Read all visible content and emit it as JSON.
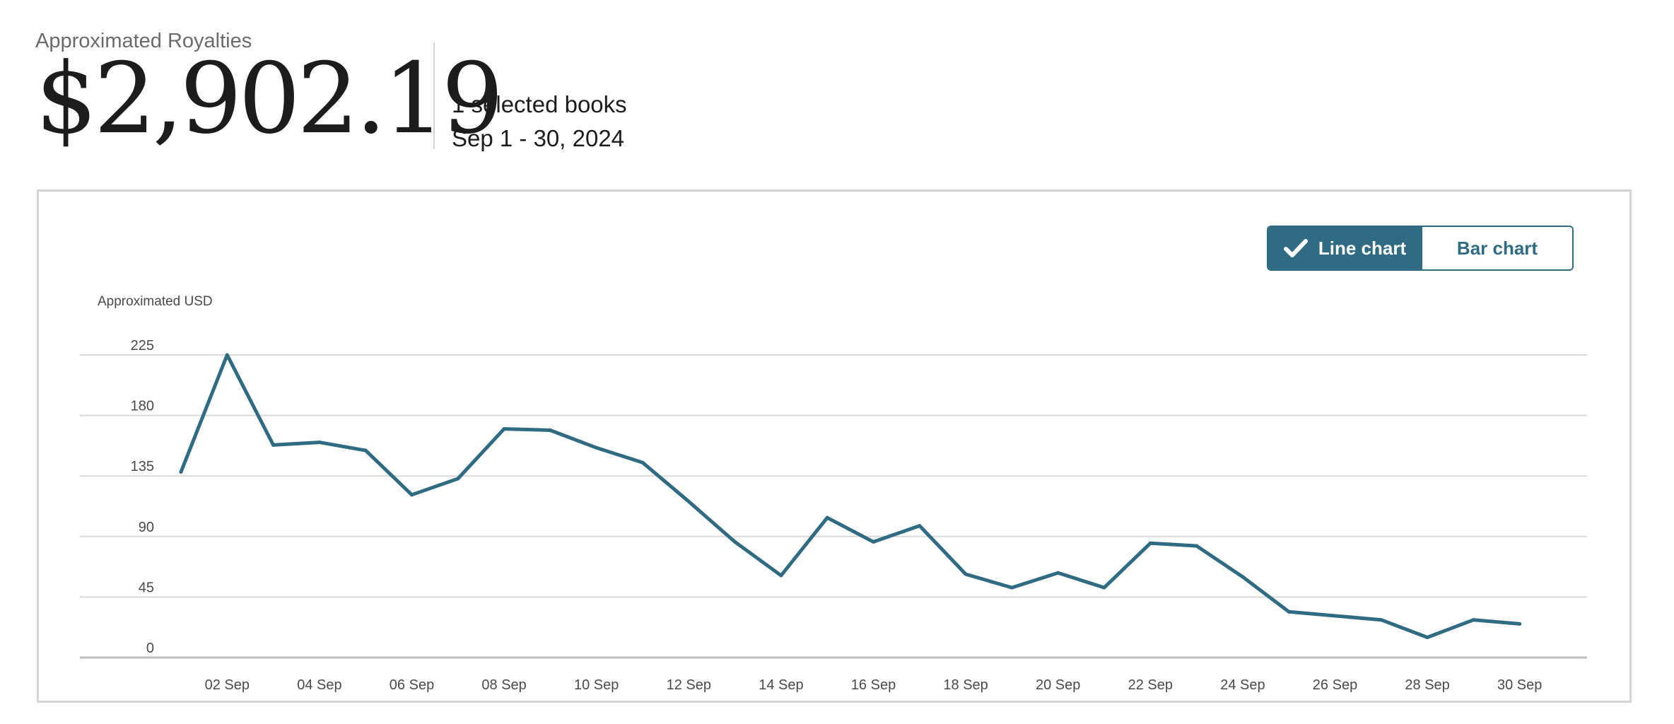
{
  "header": {
    "label": "Approximated Royalties",
    "amount": "$2,902.19",
    "books": "1 selected books",
    "date_range": "Sep 1 - 30, 2024"
  },
  "toggle": {
    "line_label": "Line chart",
    "bar_label": "Bar chart",
    "selected": "line",
    "check_icon": "checkmark-icon"
  },
  "colors": {
    "accent": "#2f6b82",
    "grid": "#d9d9d9"
  },
  "chart_data": {
    "type": "line",
    "ylabel": "Approximated USD",
    "ylim": [
      0,
      225
    ],
    "yticks": [
      0,
      45,
      90,
      135,
      180,
      225
    ],
    "grid": true,
    "x": [
      "01 Sep",
      "02 Sep",
      "03 Sep",
      "04 Sep",
      "05 Sep",
      "06 Sep",
      "07 Sep",
      "08 Sep",
      "09 Sep",
      "10 Sep",
      "11 Sep",
      "12 Sep",
      "13 Sep",
      "14 Sep",
      "15 Sep",
      "16 Sep",
      "17 Sep",
      "18 Sep",
      "19 Sep",
      "20 Sep",
      "21 Sep",
      "22 Sep",
      "23 Sep",
      "24 Sep",
      "25 Sep",
      "26 Sep",
      "27 Sep",
      "28 Sep",
      "29 Sep",
      "30 Sep"
    ],
    "xticklabels": [
      "02 Sep",
      "04 Sep",
      "06 Sep",
      "08 Sep",
      "10 Sep",
      "12 Sep",
      "14 Sep",
      "16 Sep",
      "18 Sep",
      "20 Sep",
      "22 Sep",
      "24 Sep",
      "26 Sep",
      "28 Sep",
      "30 Sep"
    ],
    "series": [
      {
        "values": [
          138,
          225,
          158,
          160,
          154,
          121,
          133,
          170,
          169,
          156,
          145,
          116,
          86,
          61,
          104,
          86,
          98,
          62,
          52,
          63,
          52,
          85,
          83,
          60,
          34,
          31,
          28,
          15,
          28,
          25
        ]
      }
    ]
  }
}
